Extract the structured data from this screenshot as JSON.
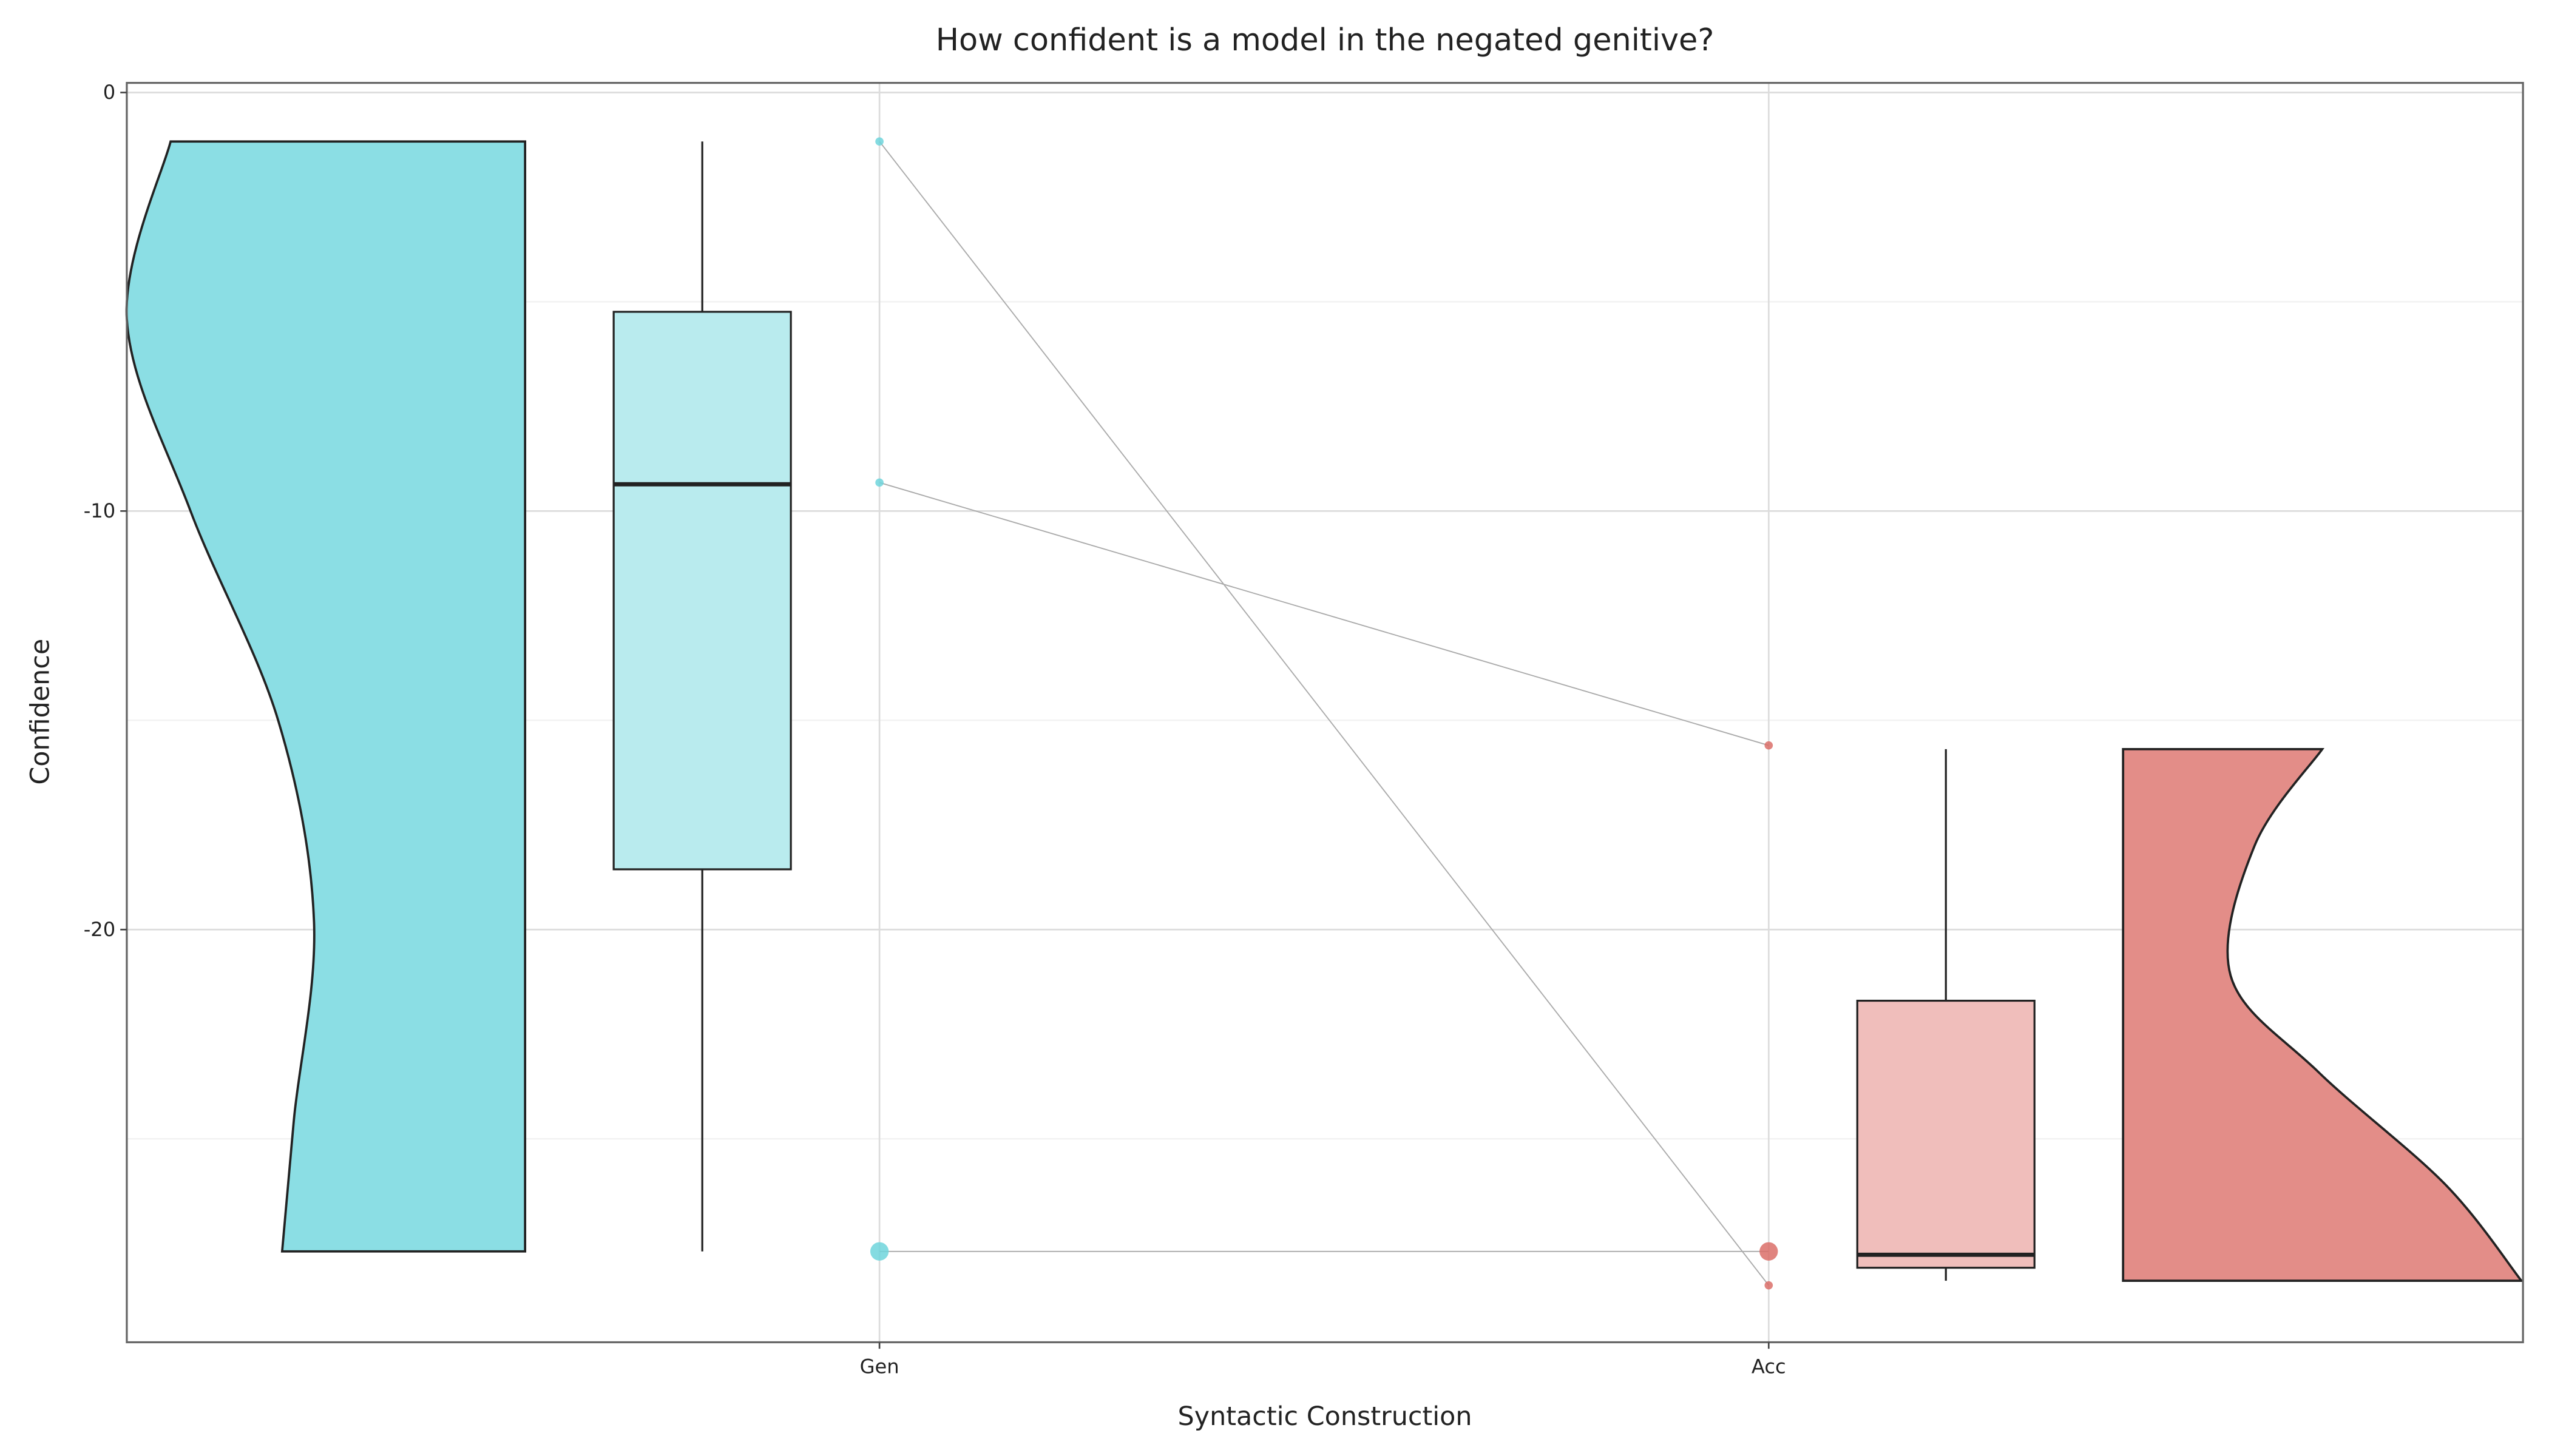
{
  "chart_data": {
    "type": "raincloud",
    "title": "How confident is a model in the negated genitive?",
    "x_label": "Syntactic Construction",
    "y_label": "Confidence",
    "categories": [
      "Gen",
      "Acc"
    ],
    "ylim": [
      -29.86,
      0.23
    ],
    "yticks": [
      0,
      -10,
      -20
    ],
    "minor_yticks": [
      -5,
      -15,
      -25
    ],
    "grid": true,
    "groups": [
      {
        "points": [
          -1.17,
          -9.32,
          -27.69
        ],
        "point_sizes": [
          1,
          1,
          3
        ],
        "point_color": "#6fd5dc",
        "box_color": "#b9ebee",
        "violin_color": "#8bdee4",
        "violin_side": "left",
        "box": {
          "whislo": -27.69,
          "q1": -18.56,
          "median": -9.36,
          "q3": -5.24,
          "whishi": -1.17
        },
        "violin": {
          "y": [
            -1.17,
            -5.4,
            -10,
            -15,
            -19.8,
            -24.5,
            -27.69
          ],
          "density": [
            0.89,
            1.0,
            0.84,
            0.62,
            0.53,
            0.58,
            0.61
          ]
        }
      },
      {
        "points": [
          -28.5,
          -15.6,
          -27.69
        ],
        "point_sizes": [
          1,
          1,
          3
        ],
        "point_color": "#da6f69",
        "box_color": "#f0bebb",
        "violin_color": "#e38d88",
        "violin_side": "right",
        "box": {
          "whislo": -28.39,
          "q1": -28.08,
          "median": -27.77,
          "q3": -21.7,
          "whishi": -15.69
        },
        "violin": {
          "y": [
            -15.69,
            -18,
            -21.1,
            -23.4,
            -26.1,
            -28.39
          ],
          "density": [
            0.5,
            0.33,
            0.27,
            0.49,
            0.81,
            1.0
          ]
        }
      }
    ],
    "paired_lines": true
  }
}
